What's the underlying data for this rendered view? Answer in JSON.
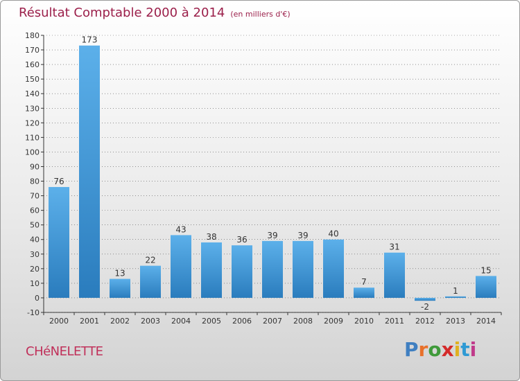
{
  "header": {
    "title": "Résultat Comptable 2000 à 2014",
    "subtitle": "(en milliers d'€)"
  },
  "footer": {
    "commune": "CHéNELETTE",
    "brand_letters": [
      "P",
      "r",
      "o",
      "x",
      "i",
      "t",
      "i"
    ],
    "brand_colors": [
      "#3f7fc1",
      "#e8702a",
      "#3f9a3a",
      "#d42a2a",
      "#e0b020",
      "#2f9ad4",
      "#c03a8a"
    ]
  },
  "colors": {
    "bar_light": "#5aaee8",
    "bar_dark": "#2a7fc0",
    "title": "#9b1f4a",
    "grid": "#333333"
  },
  "chart_data": {
    "type": "bar",
    "title": "Résultat Comptable 2000 à 2014",
    "subtitle": "(en milliers d'€)",
    "categories": [
      "2000",
      "2001",
      "2002",
      "2003",
      "2004",
      "2005",
      "2006",
      "2007",
      "2008",
      "2009",
      "2010",
      "2011",
      "2012",
      "2013",
      "2014"
    ],
    "values": [
      76,
      173,
      13,
      22,
      43,
      38,
      36,
      39,
      39,
      40,
      7,
      31,
      -2,
      1,
      15
    ],
    "ylim": [
      -10,
      180
    ],
    "yticks": [
      -10,
      0,
      10,
      20,
      30,
      40,
      50,
      60,
      70,
      80,
      90,
      100,
      110,
      120,
      130,
      140,
      150,
      160,
      170,
      180
    ],
    "xlabel": "",
    "ylabel": ""
  }
}
